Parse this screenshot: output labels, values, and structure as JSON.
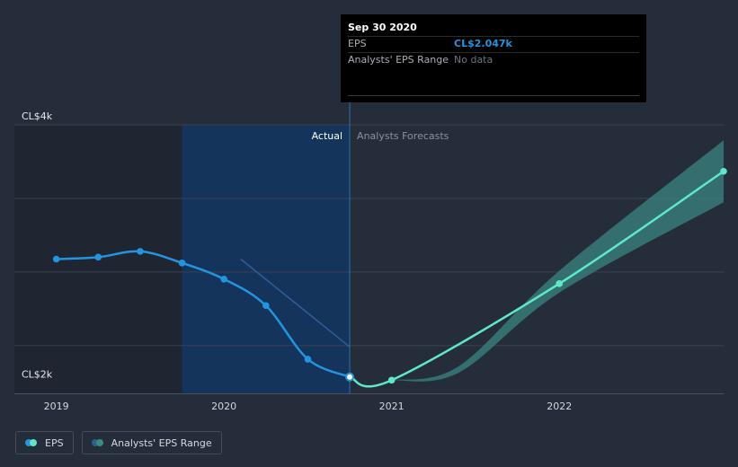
{
  "colors": {
    "background": "#262d3a",
    "eps_line": "#2394df",
    "forecast_line": "#5ee8c9",
    "forecast_band": "#3a8a85",
    "highlight_region": "#14345b",
    "past_shade": "#1f2632",
    "grid": "#3a4252",
    "text": "#d4d8de",
    "muted_text": "#8b919b"
  },
  "tooltip": {
    "date": "Sep 30 2020",
    "eps_label": "EPS",
    "eps_value": "CL$2.047k",
    "range_label": "Analysts' EPS Range",
    "range_value": "No data"
  },
  "legend": {
    "eps_label": "EPS",
    "range_label": "Analysts' EPS Range"
  },
  "chart_data": {
    "type": "line",
    "y_labels": [
      {
        "value": 4000,
        "text": "CL$4k"
      },
      {
        "value": 2000,
        "text": "CL$2k"
      }
    ],
    "x_ticks": [
      {
        "x": 2019.0,
        "text": "2019"
      },
      {
        "x": 2020.0,
        "text": "2020"
      },
      {
        "x": 2021.0,
        "text": "2021"
      },
      {
        "x": 2022.0,
        "text": "2022"
      }
    ],
    "ylim": [
      1920,
      4000
    ],
    "xlim": [
      2018.75,
      2022.98
    ],
    "grid_values": [
      4000,
      3430,
      2860,
      2290
    ],
    "region_labels": {
      "actual": "Actual",
      "forecasts": "Analysts Forecasts"
    },
    "present_x": 2020.75,
    "past_shade_end": 2019.75,
    "series": [
      {
        "name": "EPS",
        "role": "actual",
        "points": [
          {
            "x": 2019.0,
            "y": 2960
          },
          {
            "x": 2019.25,
            "y": 2975
          },
          {
            "x": 2019.5,
            "y": 3020
          },
          {
            "x": 2019.75,
            "y": 2930
          },
          {
            "x": 2020.0,
            "y": 2805
          },
          {
            "x": 2020.25,
            "y": 2600
          },
          {
            "x": 2020.5,
            "y": 2185
          },
          {
            "x": 2020.75,
            "y": 2047
          }
        ]
      },
      {
        "name": "",
        "role": "forecast",
        "points": [
          {
            "x": 2020.75,
            "y": 2047
          },
          {
            "x": 2021.0,
            "y": 2022
          },
          {
            "x": 2022.0,
            "y": 2770
          },
          {
            "x": 2022.98,
            "y": 3640
          }
        ]
      },
      {
        "name": "Analysts' EPS Range",
        "role": "range",
        "points": [
          {
            "x": 2021.0,
            "low": 2022,
            "high": 2022
          },
          {
            "x": 2021.4,
            "low": 2080,
            "high": 2130
          },
          {
            "x": 2022.0,
            "low": 2700,
            "high": 2870
          },
          {
            "x": 2022.98,
            "low": 3400,
            "high": 3880
          }
        ]
      },
      {
        "name": "",
        "role": "trend",
        "points": [
          {
            "x": 2020.1,
            "y": 2960
          },
          {
            "x": 2020.75,
            "y": 2280
          }
        ]
      }
    ]
  }
}
